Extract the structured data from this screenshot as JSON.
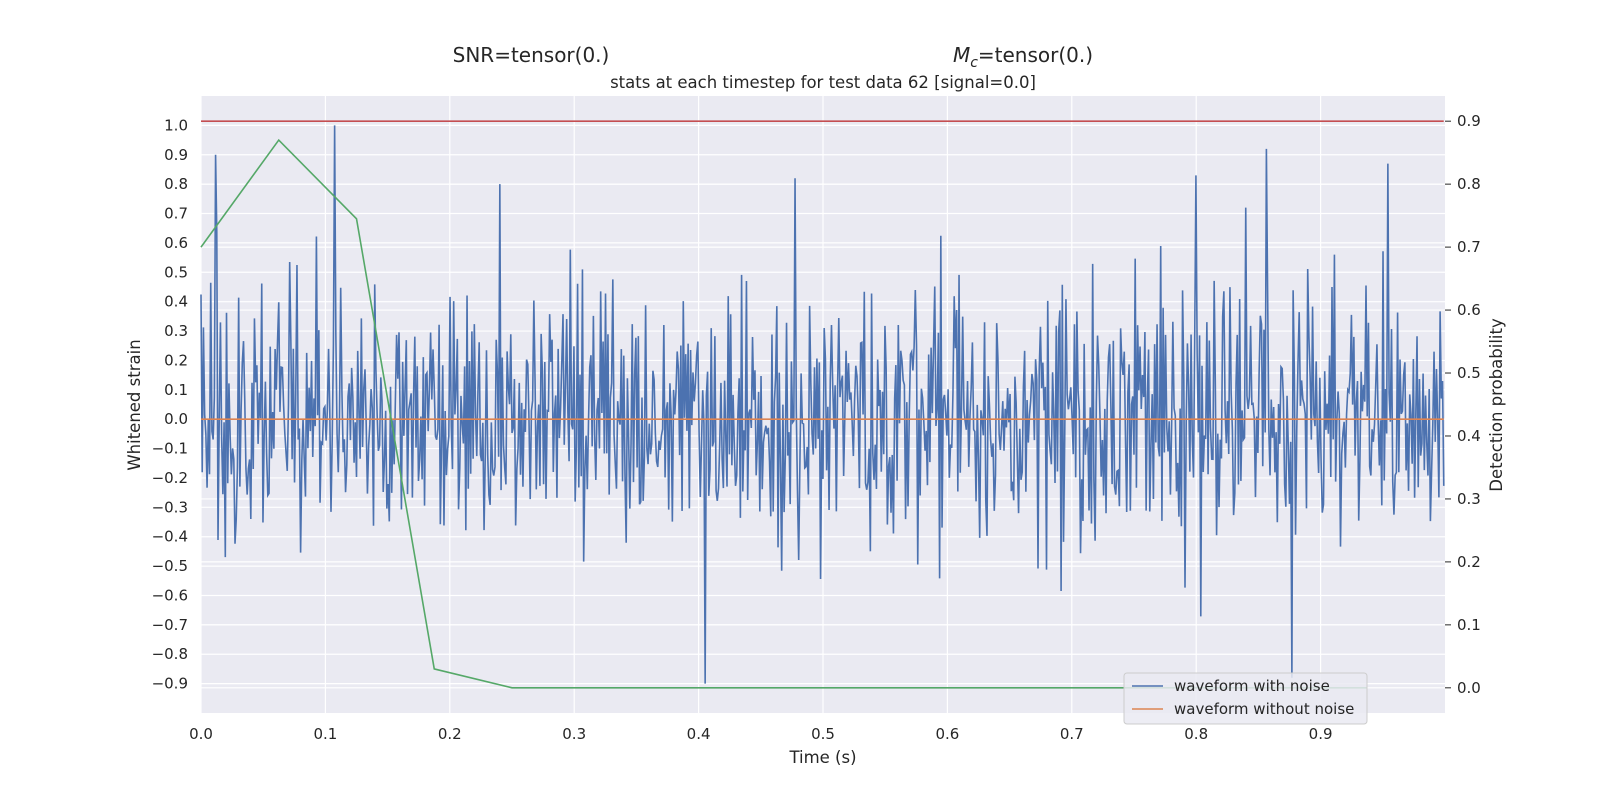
{
  "chart_data": {
    "type": "line",
    "suptitle_left": "SNR=tensor(0.)",
    "suptitle_right_symbol": "M",
    "suptitle_right_subscript": "c",
    "suptitle_right_rest": "=tensor(0.)",
    "title": "stats at each timestep for test data 62 [signal=0.0]",
    "xlabel": "Time (s)",
    "ylabel": "Whitened strain",
    "ylabel_right": "Detection probability",
    "xlim": [
      0.0,
      1.0
    ],
    "ylim": [
      -1.0,
      1.1
    ],
    "ylim_right": [
      -0.04,
      0.94
    ],
    "x_ticks": [
      0.0,
      0.1,
      0.2,
      0.3,
      0.4,
      0.5,
      0.6,
      0.7,
      0.8,
      0.9
    ],
    "x_tick_labels": [
      "0.0",
      "0.1",
      "0.2",
      "0.3",
      "0.4",
      "0.5",
      "0.6",
      "0.7",
      "0.8",
      "0.9"
    ],
    "y_ticks": [
      1.0,
      0.9,
      0.8,
      0.7,
      0.6,
      0.5,
      0.4,
      0.3,
      0.2,
      0.1,
      0.0,
      -0.1,
      -0.2,
      -0.3,
      -0.4,
      -0.5,
      -0.6,
      -0.7,
      -0.8,
      -0.9
    ],
    "y_tick_labels": [
      "1.0",
      "0.9",
      "0.8",
      "0.7",
      "0.6",
      "0.5",
      "0.4",
      "0.3",
      "0.2",
      "0.1",
      "0.0",
      "−0.1",
      "−0.2",
      "−0.3",
      "−0.4",
      "−0.5",
      "−0.6",
      "−0.7",
      "−0.8",
      "−0.9"
    ],
    "y_right_ticks": [
      0.9,
      0.8,
      0.7,
      0.6,
      0.5,
      0.4,
      0.3,
      0.2,
      0.1,
      0.0
    ],
    "y_right_tick_labels": [
      "0.9",
      "0.8",
      "0.7",
      "0.6",
      "0.5",
      "0.4",
      "0.3",
      "0.2",
      "0.1",
      "0.0"
    ],
    "grid": true,
    "legend_placement": "lower-right",
    "series": [
      {
        "name": "waveform with noise",
        "axis": "left",
        "color": "#4c72b0",
        "n_points": 1024,
        "x_range": [
          0.0,
          0.999
        ],
        "y_min": -0.9,
        "y_max": 1.0,
        "note_peaks": [
          [
            0.012,
            0.9
          ],
          [
            0.107,
            1.0
          ],
          [
            0.24,
            0.8
          ],
          [
            0.478,
            0.82
          ],
          [
            0.8,
            0.83
          ],
          [
            0.856,
            0.92
          ],
          [
            0.954,
            0.87
          ],
          [
            0.405,
            -0.9
          ],
          [
            0.877,
            -0.88
          ]
        ]
      },
      {
        "name": "waveform without noise",
        "axis": "left",
        "color": "#dd8452",
        "x": [
          0.0,
          0.999
        ],
        "y": [
          0.0,
          0.0
        ]
      },
      {
        "axis": "right",
        "color": "#55a868",
        "x": [
          0.0,
          0.0625,
          0.125,
          0.1875,
          0.25,
          0.3125,
          0.375,
          0.4375,
          0.5,
          0.5625,
          0.625,
          0.6875,
          0.75,
          0.8125,
          0.875,
          0.9375
        ],
        "y": [
          0.7,
          0.87,
          0.745,
          0.03,
          0.0,
          0.0,
          0.0,
          0.0,
          0.0,
          0.0,
          0.0,
          0.0,
          0.0,
          0.0,
          0.0,
          0.0
        ]
      },
      {
        "axis": "right",
        "color": "#c44e52",
        "x": [
          0.0,
          0.999
        ],
        "y": [
          0.9,
          0.9
        ]
      }
    ]
  }
}
